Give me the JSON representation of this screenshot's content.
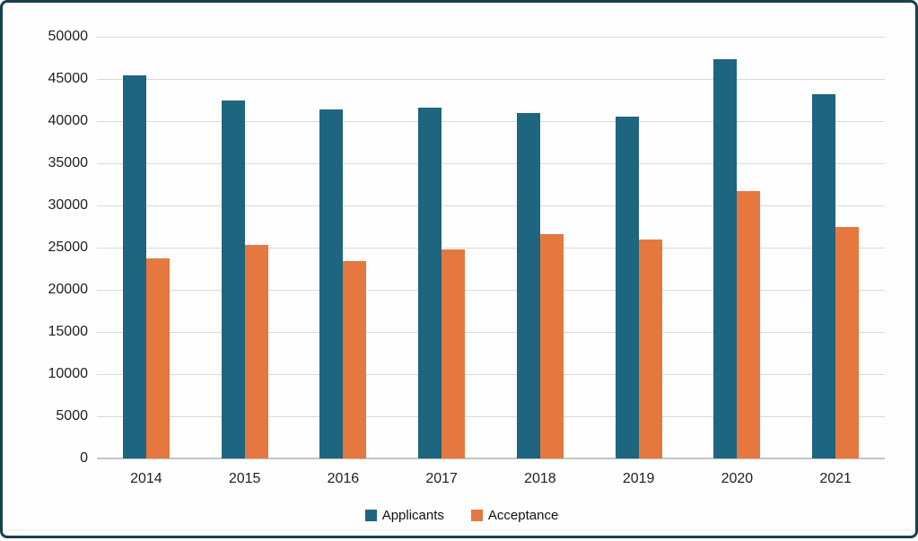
{
  "frame": {
    "border_color": "#16414e",
    "background": "#fefefe"
  },
  "chart_data": {
    "type": "bar",
    "title": "",
    "xlabel": "",
    "ylabel": "",
    "categories": [
      "2014",
      "2015",
      "2016",
      "2017",
      "2018",
      "2019",
      "2020",
      "2021"
    ],
    "series": [
      {
        "name": "Applicants",
        "color": "#1e6580",
        "values": [
          45400,
          42400,
          41400,
          41600,
          41000,
          40500,
          47300,
          43200
        ]
      },
      {
        "name": "Acceptance",
        "color": "#e5783e",
        "values": [
          23700,
          25300,
          23400,
          24800,
          26600,
          26000,
          31700,
          27400
        ]
      }
    ],
    "ylim": [
      0,
      50000
    ],
    "ytick_step": 5000,
    "ytick_labels": [
      "0",
      "5000",
      "10000",
      "15000",
      "20000",
      "25000",
      "30000",
      "35000",
      "40000",
      "45000",
      "50000"
    ],
    "grid": true,
    "gridline_color": "#d9d9d9",
    "axis_line_color": "#c3c3c3",
    "tick_label_color": "#1f1f1f",
    "legend_position": "bottom"
  }
}
